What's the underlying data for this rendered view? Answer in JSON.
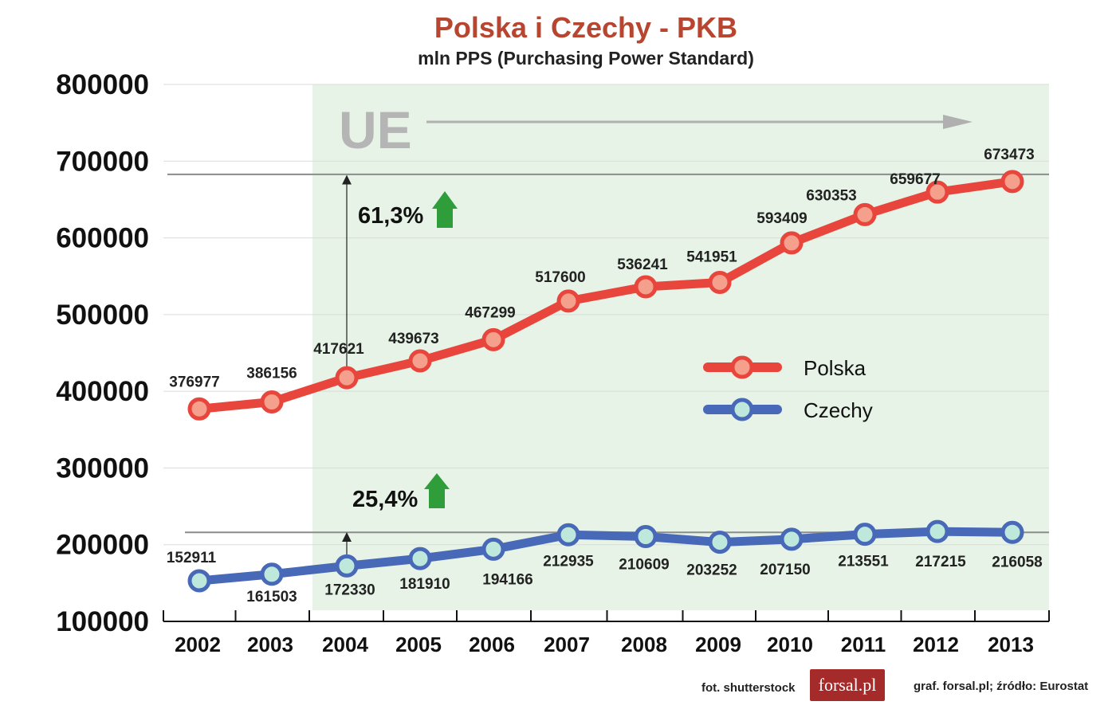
{
  "title": "Polska i Czechy - PKB",
  "subtitle": "mln PPS (Purchasing Power Standard)",
  "annotations": {
    "ue_label": "UE",
    "polska_growth": "61,3%",
    "czechy_growth": "25,4%"
  },
  "footer": {
    "photo_credit": "fot. shutterstock",
    "logo_text": "forsal.pl",
    "source": "graf. forsal.pl;  źródło: Eurostat"
  },
  "colors": {
    "polska": "#e8453c",
    "czechy": "#4868b8",
    "background_tint": "#e6f3e6",
    "title": "#b8452f"
  },
  "chart_data": {
    "type": "line",
    "title": "Polska i Czechy - PKB",
    "subtitle": "mln PPS (Purchasing Power Standard)",
    "categories": [
      "2002",
      "2003",
      "2004",
      "2005",
      "2006",
      "2007",
      "2008",
      "2009",
      "2010",
      "2011",
      "2012",
      "2013"
    ],
    "ylim": [
      100000,
      800000
    ],
    "yticks": [
      "100000",
      "200000",
      "300000",
      "400000",
      "500000",
      "600000",
      "700000",
      "800000"
    ],
    "grid": true,
    "legend_position": "right",
    "series": [
      {
        "name": "Polska",
        "color": "#e8453c",
        "values": [
          376977,
          386156,
          417621,
          439673,
          467299,
          517600,
          536241,
          541951,
          593409,
          630353,
          659677,
          673473
        ],
        "labels": [
          "376977",
          "386156",
          "417621",
          "439673",
          "467299",
          "517600",
          "536241",
          "541951",
          "593409",
          "630353",
          "659677",
          "673473"
        ]
      },
      {
        "name": "Czechy",
        "color": "#4868b8",
        "values": [
          152911,
          161503,
          172330,
          181910,
          194166,
          212935,
          210609,
          203252,
          207150,
          213551,
          217215,
          216058
        ],
        "labels": [
          "152911",
          "161503",
          "172330",
          "181910",
          "194166",
          "212935",
          "210609",
          "203252",
          "207150",
          "213551",
          "217215",
          "216058"
        ]
      }
    ],
    "reference_lines": [
      {
        "series": "Polska",
        "value": 673473
      },
      {
        "series": "Czechy",
        "value": 216058
      }
    ]
  }
}
